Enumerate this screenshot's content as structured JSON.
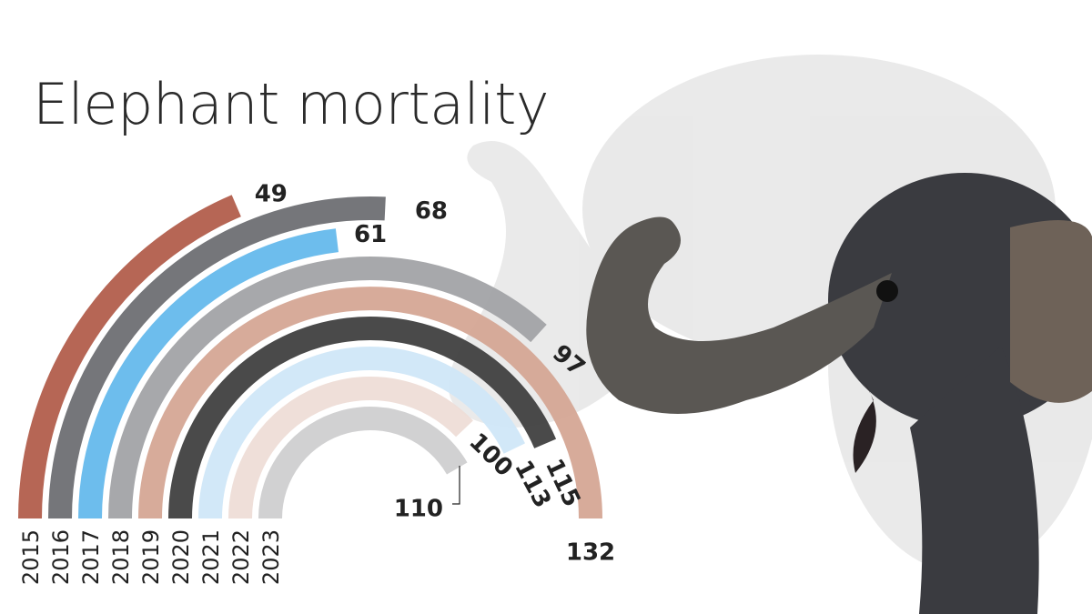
{
  "title": "Elephant mortality",
  "chart_data": {
    "type": "radial-bar",
    "title": "Elephant mortality",
    "categories": [
      "2015",
      "2016",
      "2017",
      "2018",
      "2019",
      "2020",
      "2021",
      "2022",
      "2023"
    ],
    "values": [
      49,
      68,
      61,
      97,
      132,
      115,
      113,
      100,
      110
    ],
    "value_labels": [
      "49",
      "68",
      "61",
      "97",
      "132",
      "115",
      "113",
      "100",
      "110"
    ],
    "max_value": 132,
    "colors": [
      "#b05a48",
      "#6b6c70",
      "#62b8ec",
      "#a0a1a5",
      "#d4a592",
      "#3c3c3c",
      "#cfe6f8",
      "#eeddd6",
      "#cdcdcf"
    ]
  },
  "background_image": "elephant-photo"
}
